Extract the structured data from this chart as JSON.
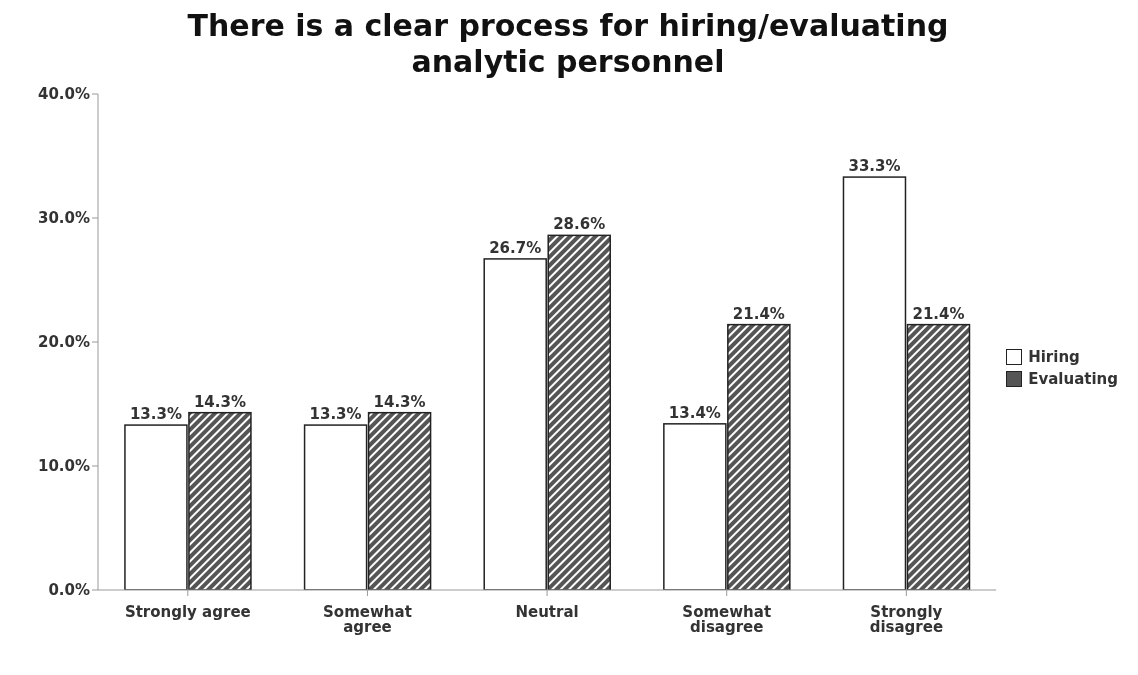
{
  "chart_data": {
    "type": "bar",
    "title": "There is a clear process for hiring/evaluating analytic personnel",
    "categories": [
      "Strongly agree",
      "Somewhat agree",
      "Neutral",
      "Somewhat disagree",
      "Strongly disagree"
    ],
    "series": [
      {
        "name": "Hiring",
        "color": "#ffffff",
        "values": [
          13.3,
          13.3,
          26.7,
          13.4,
          33.3
        ],
        "value_labels": [
          "13.3%",
          "13.3%",
          "26.7%",
          "13.4%",
          "33.3%"
        ]
      },
      {
        "name": "Evaluating",
        "color": "#555555",
        "values": [
          14.3,
          14.3,
          28.6,
          21.4,
          21.4
        ],
        "value_labels": [
          "14.3%",
          "14.3%",
          "28.6%",
          "21.4%",
          "21.4%"
        ]
      }
    ],
    "ylim": [
      0,
      40
    ],
    "yticks": [
      {
        "value": 0,
        "label": "0.0%"
      },
      {
        "value": 10,
        "label": "10.0%"
      },
      {
        "value": 20,
        "label": "20.0%"
      },
      {
        "value": 30,
        "label": "30.0%"
      },
      {
        "value": 40,
        "label": "40.0%"
      }
    ],
    "grid": false,
    "legend": "right"
  }
}
